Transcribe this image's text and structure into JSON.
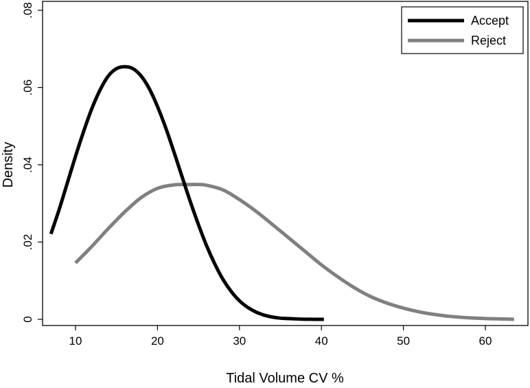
{
  "chart_data": {
    "type": "line",
    "title": "",
    "xlabel": "Tidal Volume CV %",
    "ylabel": "Density",
    "xlim": [
      6,
      64
    ],
    "ylim": [
      0,
      0.08
    ],
    "x_ticks": [
      10,
      20,
      30,
      40,
      50,
      60
    ],
    "x_tick_labels": [
      "10",
      "20",
      "30",
      "40",
      "50",
      "60"
    ],
    "y_ticks": [
      0,
      0.02,
      0.04,
      0.06,
      0.08
    ],
    "y_tick_labels": [
      "0",
      ".02",
      ".04",
      ".06",
      ".08"
    ],
    "grid": false,
    "legend_position": "top-right",
    "series": [
      {
        "name": "Accept",
        "color": "#000000",
        "x": [
          7,
          8,
          9,
          10,
          11,
          12,
          13,
          14,
          15,
          16,
          17,
          18,
          19,
          20,
          21,
          22,
          23,
          24,
          25,
          26,
          27,
          28,
          29,
          30,
          31,
          32,
          33,
          34,
          35,
          36,
          37,
          38,
          39,
          40.3
        ],
        "y": [
          0.0221,
          0.0284,
          0.0353,
          0.0422,
          0.0487,
          0.0546,
          0.0594,
          0.063,
          0.0649,
          0.0654,
          0.0649,
          0.063,
          0.0597,
          0.0551,
          0.0496,
          0.0434,
          0.0369,
          0.0305,
          0.0245,
          0.019,
          0.0143,
          0.0103,
          0.0072,
          0.0048,
          0.0031,
          0.0019,
          0.0011,
          0.0006,
          0.0003,
          0.0002,
          0.0001,
          3e-05,
          1e-05,
          0.0
        ]
      },
      {
        "name": "Reject",
        "color": "#808080",
        "x": [
          10,
          12,
          14,
          16,
          18,
          20,
          22,
          24,
          25,
          26,
          28,
          30,
          32,
          34,
          36,
          38,
          40,
          42,
          44,
          46,
          48,
          50,
          52,
          54,
          56,
          58,
          60,
          62,
          63.5
        ],
        "y": [
          0.0146,
          0.0189,
          0.0235,
          0.0278,
          0.0315,
          0.0339,
          0.0348,
          0.0349,
          0.0349,
          0.0347,
          0.0335,
          0.031,
          0.028,
          0.0246,
          0.0211,
          0.0176,
          0.0141,
          0.011,
          0.0082,
          0.0059,
          0.0042,
          0.0029,
          0.0019,
          0.0012,
          0.0007,
          0.0004,
          0.0002,
          0.0001,
          0.0
        ]
      }
    ]
  }
}
